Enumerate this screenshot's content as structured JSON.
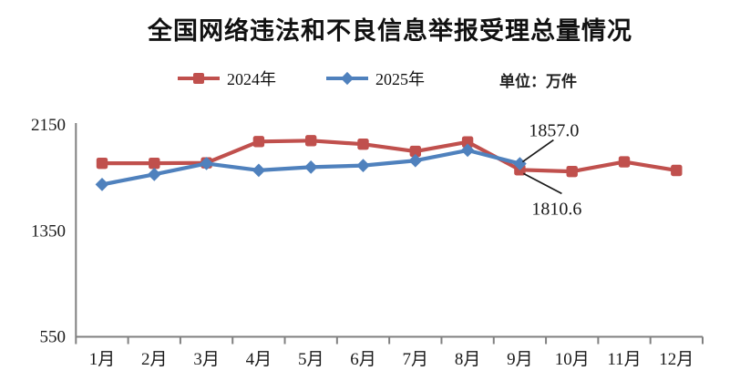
{
  "title": "全国网络违法和不良信息举报受理总量情况",
  "legend": {
    "items": [
      {
        "label": "2024年",
        "color": "#C0504D",
        "marker": "square"
      },
      {
        "label": "2025年",
        "color": "#4F81BD",
        "marker": "diamond"
      }
    ],
    "unit_label": "单位：万件"
  },
  "chart_data": {
    "type": "line",
    "title": "全国网络违法和不良信息举报受理总量情况",
    "unit": "万件",
    "categories": [
      "1月",
      "2月",
      "3月",
      "4月",
      "5月",
      "6月",
      "7月",
      "8月",
      "9月",
      "10月",
      "11月",
      "12月"
    ],
    "series": [
      {
        "name": "2024年",
        "color": "#C0504D",
        "marker": "square",
        "values": [
          1860,
          1860,
          1863,
          2024,
          2031,
          2004,
          1950,
          2021,
          1810.6,
          1798,
          1871,
          1806
        ]
      },
      {
        "name": "2025年",
        "color": "#4F81BD",
        "marker": "diamond",
        "values": [
          1700,
          1776,
          1858,
          1807,
          1831,
          1843,
          1880,
          1958,
          1857.0,
          null,
          null,
          null
        ]
      }
    ],
    "xlabel": "",
    "ylabel": "",
    "ylim": [
      550,
      2150
    ],
    "yticks": [
      2150,
      1350,
      550
    ],
    "grid": false,
    "legend_position": "top",
    "axis_color": "#808080",
    "annotations": [
      {
        "text": "1857.0",
        "series": "2025年",
        "category": "9月",
        "value": 1857.0,
        "placement": "above"
      },
      {
        "text": "1810.6",
        "series": "2024年",
        "category": "9月",
        "value": 1810.6,
        "placement": "below"
      }
    ]
  }
}
